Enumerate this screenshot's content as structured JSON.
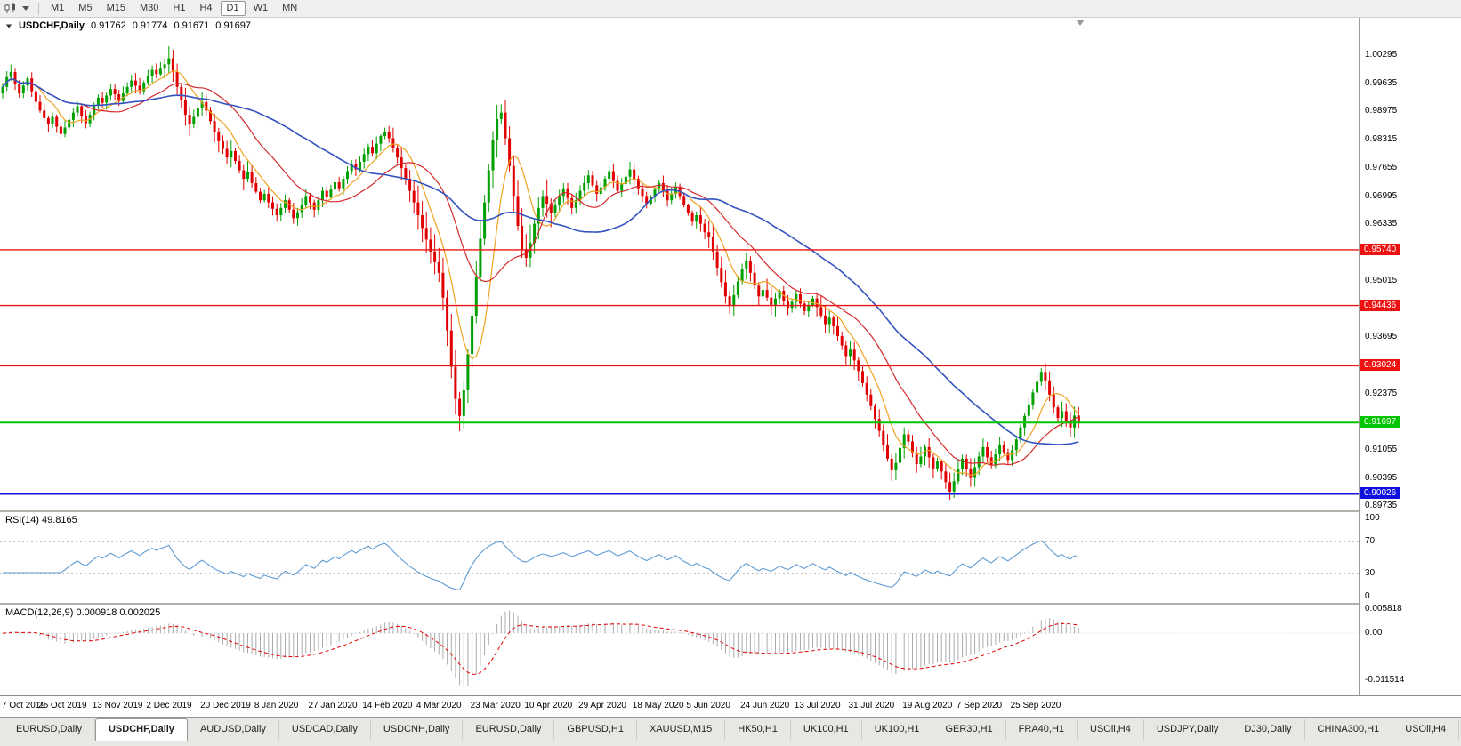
{
  "colors": {
    "up": "#00a000",
    "down": "#e00000",
    "ma_fast": "#efa322",
    "ma_mid": "#d42a2a",
    "ma_slow": "#3353c0",
    "rsi": "#5e9bd3",
    "macd_hist": "#ababab",
    "macd_signal": "#e00000"
  },
  "toolbar": {
    "timeframes": [
      "M1",
      "M5",
      "M15",
      "M30",
      "H1",
      "H4",
      "D1",
      "W1",
      "MN"
    ],
    "active": "D1"
  },
  "chart_header": {
    "symbol": "USDCHF,Daily",
    "open": "0.91762",
    "high": "0.91774",
    "low": "0.91671",
    "close": "0.91697"
  },
  "price_axis": {
    "ticks": [
      "1.00295",
      "0.99635",
      "0.98975",
      "0.98315",
      "0.97655",
      "0.96995",
      "0.96335",
      "0.95675",
      "0.95015",
      "0.94355",
      "0.93695",
      "0.93035",
      "0.92375",
      "0.91715",
      "0.91055",
      "0.90395",
      "0.89735"
    ]
  },
  "hlines": [
    {
      "label": "0.95740",
      "price": 0.9574,
      "color": "#ee1111",
      "thickness": 1.4
    },
    {
      "label": "0.94436",
      "price": 0.94436,
      "color": "#ee1111",
      "thickness": 1.4
    },
    {
      "label": "0.93024",
      "price": 0.93024,
      "color": "#ee1111",
      "thickness": 1.4
    },
    {
      "label": "0.91697",
      "price": 0.91697,
      "color": "#00c400",
      "thickness": 2
    },
    {
      "label": "0.90026",
      "price": 0.90026,
      "color": "#1212dd",
      "thickness": 2
    }
  ],
  "indicators": {
    "rsi": {
      "label": "RSI(14) 49.8165",
      "period": 14,
      "levels": [
        "100",
        "70",
        "30",
        "0"
      ],
      "level_values": [
        100,
        70,
        30,
        0
      ]
    },
    "macd": {
      "label": "MACD(12,26,9) 0.000918 0.002025",
      "fast": 12,
      "slow": 26,
      "signal": 9,
      "axis_labels": [
        "0.005818",
        "0.00",
        "-0.011514"
      ],
      "axis_values": [
        0.005818,
        0,
        -0.011514
      ]
    }
  },
  "date_axis": {
    "labels": [
      "7 Oct 2019",
      "25 Oct 2019",
      "13 Nov 2019",
      "2 Dec 2019",
      "20 Dec 2019",
      "8 Jan 2020",
      "27 Jan 2020",
      "14 Feb 2020",
      "4 Mar 2020",
      "23 Mar 2020",
      "10 Apr 2020",
      "29 Apr 2020",
      "18 May 2020",
      "5 Jun 2020",
      "24 Jun 2020",
      "13 Jul 2020",
      "31 Jul 2020",
      "19 Aug 2020",
      "7 Sep 2020",
      "25 Sep 2020"
    ],
    "first_label_bar": 2,
    "bars_per_label": 13
  },
  "tabs": {
    "active_index": 1,
    "items": [
      "EURUSD,Daily",
      "USDCHF,Daily",
      "AUDUSD,Daily",
      "USDCAD,Daily",
      "USDCNH,Daily",
      "EURUSD,Daily",
      "GBPUSD,H1",
      "XAUUSD,M15",
      "HK50,H1",
      "UK100,H1",
      "UK100,H1",
      "GER30,H1",
      "FRA40,H1",
      "USOil,H4",
      "USDJPY,Daily",
      "DJ30,Daily",
      "CHINA300,H1",
      "USOil,H4"
    ]
  },
  "chart_data": {
    "type": "candlestick",
    "symbol": "USDCHF",
    "timeframe": "Daily",
    "y_range": [
      0.8964,
      1.0117
    ],
    "overlays": [
      {
        "name": "sma-fast",
        "period": 8,
        "color_key": "ma_fast"
      },
      {
        "name": "sma-mid",
        "period": 20,
        "color_key": "ma_mid"
      },
      {
        "name": "sma-slow",
        "period": 45,
        "color_key": "ma_slow"
      }
    ],
    "closes": [
      0.9955,
      0.9978,
      0.999,
      0.9962,
      0.994,
      0.9958,
      0.9975,
      0.9945,
      0.992,
      0.99,
      0.9882,
      0.9868,
      0.9885,
      0.9862,
      0.9845,
      0.986,
      0.9878,
      0.9895,
      0.991,
      0.9888,
      0.987,
      0.989,
      0.9912,
      0.993,
      0.9918,
      0.9935,
      0.995,
      0.9938,
      0.9922,
      0.994,
      0.9955,
      0.997,
      0.9958,
      0.9945,
      0.9965,
      0.998,
      0.9995,
      0.9985,
      0.9998,
      1.0008,
      1.0022,
      0.999,
      0.9955,
      0.9925,
      0.989,
      0.9868,
      0.9885,
      0.9905,
      0.992,
      0.99,
      0.9875,
      0.985,
      0.9828,
      0.981,
      0.979,
      0.9805,
      0.9782,
      0.976,
      0.974,
      0.9755,
      0.973,
      0.971,
      0.969,
      0.9705,
      0.9685,
      0.967,
      0.9655,
      0.9672,
      0.969,
      0.9668,
      0.9648,
      0.9662,
      0.968,
      0.97,
      0.9685,
      0.9668,
      0.969,
      0.9712,
      0.9698,
      0.9715,
      0.9732,
      0.9718,
      0.974,
      0.9758,
      0.9775,
      0.9762,
      0.978,
      0.9798,
      0.9815,
      0.98,
      0.9822,
      0.984,
      0.985,
      0.9835,
      0.9812,
      0.979,
      0.9765,
      0.974,
      0.9712,
      0.9685,
      0.9655,
      0.9625,
      0.9598,
      0.957,
      0.9545,
      0.952,
      0.9462,
      0.9385,
      0.93,
      0.9225,
      0.9185,
      0.9245,
      0.933,
      0.942,
      0.951,
      0.96,
      0.9685,
      0.976,
      0.983,
      0.988,
      0.9895,
      0.9835,
      0.977,
      0.97,
      0.963,
      0.9575,
      0.9555,
      0.959,
      0.9635,
      0.9672,
      0.97,
      0.9682,
      0.966,
      0.9678,
      0.97,
      0.9718,
      0.9695,
      0.9672,
      0.969,
      0.9712,
      0.973,
      0.9748,
      0.9725,
      0.9705,
      0.972,
      0.974,
      0.9758,
      0.9735,
      0.9712,
      0.9728,
      0.9745,
      0.9762,
      0.974,
      0.9718,
      0.97,
      0.9682,
      0.9698,
      0.9715,
      0.973,
      0.9712,
      0.969,
      0.9705,
      0.9722,
      0.97,
      0.9678,
      0.966,
      0.964,
      0.9655,
      0.9635,
      0.9615,
      0.9605,
      0.957,
      0.9532,
      0.9498,
      0.9465,
      0.9442,
      0.9468,
      0.95,
      0.9528,
      0.9548,
      0.952,
      0.949,
      0.9465,
      0.948,
      0.9462,
      0.9445,
      0.946,
      0.9478,
      0.9455,
      0.9438,
      0.9452,
      0.947,
      0.9448,
      0.943,
      0.9445,
      0.946,
      0.944,
      0.942,
      0.94,
      0.9415,
      0.9395,
      0.9372,
      0.935,
      0.9325,
      0.934,
      0.9315,
      0.929,
      0.9262,
      0.9235,
      0.9208,
      0.9178,
      0.915,
      0.9118,
      0.9085,
      0.9058,
      0.9075,
      0.911,
      0.9142,
      0.9125,
      0.9098,
      0.9072,
      0.909,
      0.9112,
      0.9088,
      0.9062,
      0.9078,
      0.9055,
      0.903,
      0.9008,
      0.9032,
      0.906,
      0.9085,
      0.9062,
      0.904,
      0.9065,
      0.909,
      0.9112,
      0.9088,
      0.907,
      0.9095,
      0.9118,
      0.91,
      0.9082,
      0.9105,
      0.913,
      0.9158,
      0.9185,
      0.9212,
      0.924,
      0.9265,
      0.9288,
      0.9268,
      0.9235,
      0.9205,
      0.918,
      0.9196,
      0.9172,
      0.9158,
      0.9186,
      0.91697
    ]
  }
}
